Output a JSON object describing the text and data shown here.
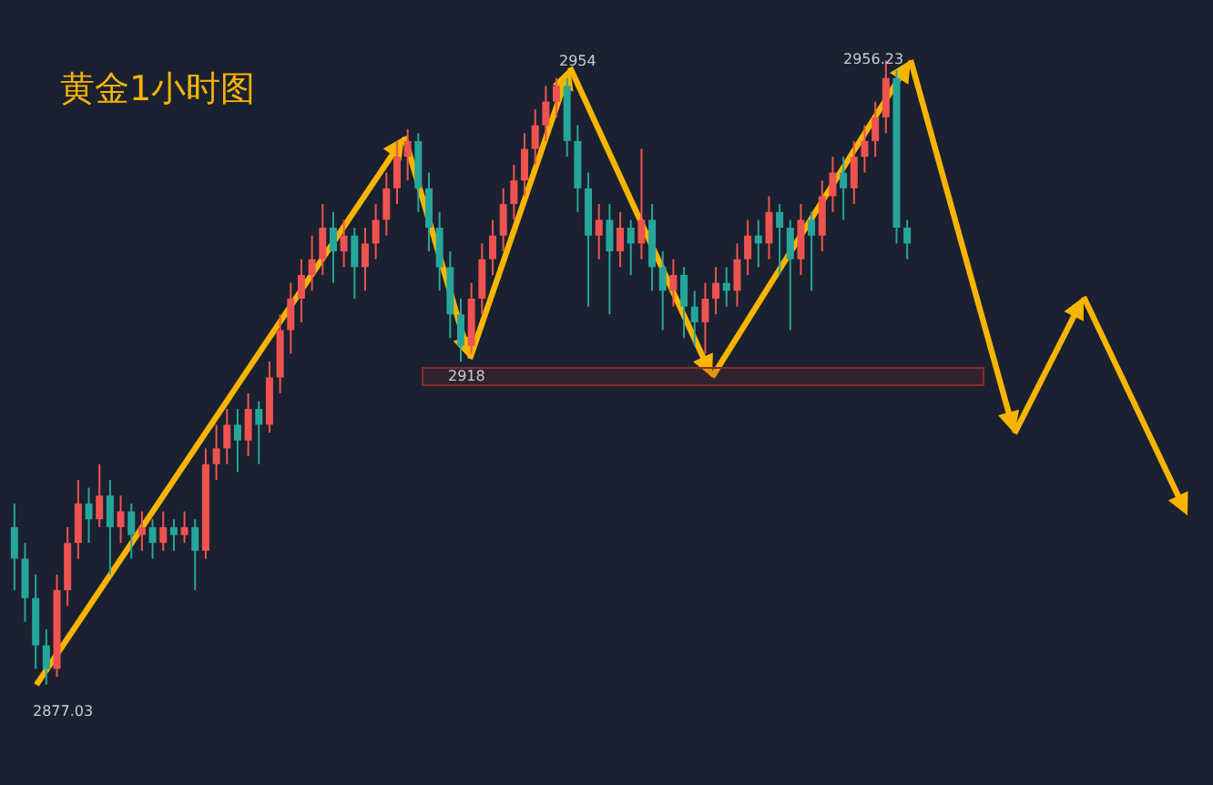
{
  "chart_data": {
    "type": "candlestick",
    "title": "黄金1小时图",
    "categories": [
      null,
      null,
      null,
      null,
      null,
      null,
      null,
      null,
      null,
      null,
      null,
      null,
      null,
      null,
      null,
      null,
      null,
      null,
      null,
      null,
      null,
      null,
      null,
      null,
      null,
      null,
      null,
      null,
      null,
      null,
      null,
      null,
      null,
      null,
      null,
      null,
      null,
      null,
      null,
      null,
      null,
      null,
      null,
      null,
      null,
      null,
      null,
      null,
      null,
      null,
      null,
      null,
      null,
      null,
      null,
      null,
      null,
      null,
      null,
      null,
      null,
      null,
      null,
      null,
      null,
      null,
      null,
      null,
      null,
      null,
      null,
      null,
      null,
      null,
      null,
      null,
      null,
      null,
      null,
      null,
      null,
      null,
      null,
      null,
      null
    ],
    "ohlc": [
      [
        2897,
        2900,
        2889,
        2893
      ],
      [
        2893,
        2895,
        2885,
        2888
      ],
      [
        2888,
        2891,
        2879,
        2882
      ],
      [
        2882,
        2884,
        2877.03,
        2879
      ],
      [
        2879,
        2891,
        2878,
        2889
      ],
      [
        2889,
        2897,
        2887,
        2895
      ],
      [
        2895,
        2903,
        2893,
        2900
      ],
      [
        2900,
        2902,
        2895,
        2898
      ],
      [
        2898,
        2905,
        2897,
        2901
      ],
      [
        2901,
        2903,
        2891,
        2897
      ],
      [
        2897,
        2901,
        2895,
        2899
      ],
      [
        2899,
        2900,
        2893,
        2896
      ],
      [
        2896,
        2899,
        2894,
        2897
      ],
      [
        2897,
        2898,
        2893,
        2895
      ],
      [
        2895,
        2899,
        2894,
        2897
      ],
      [
        2897,
        2898,
        2894,
        2896
      ],
      [
        2896,
        2899,
        2895,
        2897
      ],
      [
        2897,
        2898,
        2889,
        2894
      ],
      [
        2894,
        2907,
        2893,
        2905
      ],
      [
        2905,
        2910,
        2903,
        2907
      ],
      [
        2907,
        2912,
        2905,
        2910
      ],
      [
        2910,
        2912,
        2904,
        2908
      ],
      [
        2908,
        2914,
        2906,
        2912
      ],
      [
        2912,
        2913,
        2905,
        2910
      ],
      [
        2910,
        2918,
        2909,
        2916
      ],
      [
        2916,
        2924,
        2914,
        2922
      ],
      [
        2922,
        2928,
        2919,
        2926
      ],
      [
        2926,
        2931,
        2923,
        2929
      ],
      [
        2929,
        2934,
        2927,
        2931
      ],
      [
        2931,
        2938,
        2929,
        2935
      ],
      [
        2935,
        2937,
        2928,
        2932
      ],
      [
        2932,
        2936,
        2930,
        2934
      ],
      [
        2934,
        2935,
        2926,
        2930
      ],
      [
        2930,
        2935,
        2927,
        2933
      ],
      [
        2933,
        2938,
        2931,
        2936
      ],
      [
        2936,
        2942,
        2934,
        2940
      ],
      [
        2940,
        2946,
        2938,
        2944
      ],
      [
        2944,
        2947.5,
        2941,
        2946
      ],
      [
        2946,
        2947,
        2937,
        2940
      ],
      [
        2940,
        2942,
        2932,
        2935
      ],
      [
        2935,
        2937,
        2927,
        2930
      ],
      [
        2930,
        2932,
        2921,
        2924
      ],
      [
        2924,
        2926,
        2918,
        2920
      ],
      [
        2920,
        2928,
        2919,
        2926
      ],
      [
        2926,
        2933,
        2924,
        2931
      ],
      [
        2931,
        2936,
        2929,
        2934
      ],
      [
        2934,
        2940,
        2932,
        2938
      ],
      [
        2938,
        2943,
        2936,
        2941
      ],
      [
        2941,
        2947,
        2939,
        2945
      ],
      [
        2945,
        2950,
        2943,
        2948
      ],
      [
        2948,
        2953,
        2946,
        2951
      ],
      [
        2951,
        2954,
        2949,
        2953
      ],
      [
        2953,
        2954,
        2944,
        2946
      ],
      [
        2946,
        2948,
        2937,
        2940
      ],
      [
        2940,
        2942,
        2925,
        2934
      ],
      [
        2934,
        2938,
        2931,
        2936
      ],
      [
        2936,
        2938,
        2924,
        2932
      ],
      [
        2932,
        2937,
        2930,
        2935
      ],
      [
        2935,
        2936,
        2929,
        2933
      ],
      [
        2933,
        2945,
        2931,
        2936
      ],
      [
        2936,
        2938,
        2927,
        2930
      ],
      [
        2930,
        2932,
        2922,
        2927
      ],
      [
        2927,
        2931,
        2925,
        2929
      ],
      [
        2929,
        2930,
        2921,
        2925
      ],
      [
        2925,
        2927,
        2920,
        2923
      ],
      [
        2923,
        2928,
        2919,
        2926
      ],
      [
        2926,
        2930,
        2924,
        2928
      ],
      [
        2928,
        2930,
        2925,
        2927
      ],
      [
        2927,
        2933,
        2925,
        2931
      ],
      [
        2931,
        2936,
        2929,
        2934
      ],
      [
        2934,
        2936,
        2930,
        2933
      ],
      [
        2933,
        2939,
        2931,
        2937
      ],
      [
        2937,
        2938,
        2929,
        2935
      ],
      [
        2935,
        2936,
        2922,
        2931
      ],
      [
        2931,
        2938,
        2929,
        2936
      ],
      [
        2936,
        2937,
        2927,
        2934
      ],
      [
        2934,
        2941,
        2932,
        2939
      ],
      [
        2939,
        2944,
        2937,
        2942
      ],
      [
        2942,
        2944,
        2936,
        2940
      ],
      [
        2940,
        2946,
        2938,
        2944
      ],
      [
        2944,
        2948,
        2942,
        2946
      ],
      [
        2946,
        2951,
        2944,
        2949
      ],
      [
        2949,
        2956.23,
        2947,
        2954
      ],
      [
        2954,
        2955,
        2933,
        2935
      ],
      [
        2935,
        2936,
        2931,
        2933
      ]
    ],
    "colors": [
      "#26a69a",
      "#26a69a",
      "#26a69a",
      "#26a69a",
      "#ef5350",
      "#ef5350",
      "#ef5350",
      "#26a69a",
      "#ef5350",
      "#26a69a",
      "#ef5350",
      "#26a69a",
      "#ef5350",
      "#26a69a",
      "#ef5350",
      "#26a69a",
      "#ef5350",
      "#26a69a",
      "#ef5350",
      "#ef5350",
      "#ef5350",
      "#26a69a",
      "#ef5350",
      "#26a69a",
      "#ef5350",
      "#ef5350",
      "#ef5350",
      "#ef5350",
      "#ef5350",
      "#ef5350",
      "#26a69a",
      "#ef5350",
      "#26a69a",
      "#ef5350",
      "#ef5350",
      "#ef5350",
      "#ef5350",
      "#ef5350",
      "#26a69a",
      "#26a69a",
      "#26a69a",
      "#26a69a",
      "#26a69a",
      "#ef5350",
      "#ef5350",
      "#ef5350",
      "#ef5350",
      "#ef5350",
      "#ef5350",
      "#ef5350",
      "#ef5350",
      "#ef5350",
      "#26a69a",
      "#26a69a",
      "#26a69a",
      "#ef5350",
      "#26a69a",
      "#ef5350",
      "#26a69a",
      "#ef5350",
      "#26a69a",
      "#26a69a",
      "#ef5350",
      "#26a69a",
      "#26a69a",
      "#ef5350",
      "#ef5350",
      "#26a69a",
      "#ef5350",
      "#ef5350",
      "#26a69a",
      "#ef5350",
      "#26a69a",
      "#26a69a",
      "#ef5350",
      "#26a69a",
      "#ef5350",
      "#ef5350",
      "#26a69a",
      "#ef5350",
      "#ef5350",
      "#ef5350",
      "#ef5350",
      "#26a69a",
      "#26a69a"
    ],
    "bands": [
      {
        "axis": "y",
        "from": 2915,
        "to": 2917.2,
        "color": "#8b2a2a"
      }
    ],
    "annotations": [
      "2877.03",
      "2918",
      "2954",
      "2956.23"
    ]
  }
}
